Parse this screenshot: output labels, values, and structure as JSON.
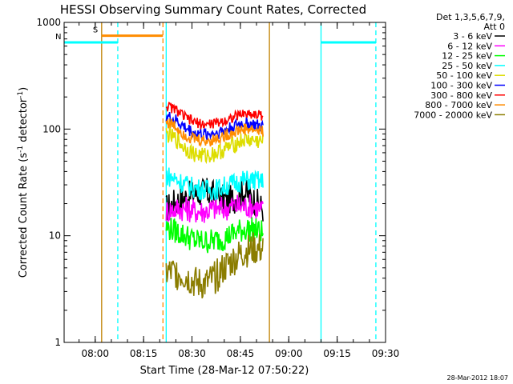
{
  "chart_data": {
    "type": "line",
    "title": "HESSI Observing Summary Count Rates, Corrected",
    "xlabel": "Start Time (28-Mar-12 07:50:22)",
    "ylabel": "Corrected Count Rate (s",
    "ylabel_sup1": "-1",
    "ylabel_mid": " detector",
    "ylabel_sup2": "-1",
    "ylabel_end": ")",
    "y_scale": "log",
    "ylim": [
      1,
      1000
    ],
    "xlim": [
      "07:50:22",
      "09:30:00"
    ],
    "x_ticks": [
      "08:00",
      "08:15",
      "08:30",
      "08:45",
      "09:00",
      "09:15",
      "09:30"
    ],
    "y_ticks": [
      "1",
      "10",
      "100",
      "1000"
    ],
    "grid": false,
    "legend_header": [
      "Det 1,3,5,6,7,9,",
      "Att 0"
    ],
    "legend_position": "top-right",
    "timestamp": "28-Mar-2012 18:07",
    "series": [
      {
        "name": "3 - 6 keV",
        "color": "#000000",
        "x": [
          "08:22",
          "08:25",
          "08:28",
          "08:31",
          "08:34",
          "08:37",
          "08:40",
          "08:43",
          "08:46",
          "08:49",
          "08:52"
        ],
        "values": [
          18,
          21,
          23,
          25,
          26,
          24,
          22,
          22,
          26,
          22,
          18
        ]
      },
      {
        "name": "6 - 12 keV",
        "color": "#ff00ff",
        "x": [
          "08:22",
          "08:25",
          "08:28",
          "08:31",
          "08:34",
          "08:37",
          "08:40",
          "08:43",
          "08:46",
          "08:49",
          "08:52"
        ],
        "values": [
          17,
          18,
          18,
          17,
          17,
          18,
          18,
          19,
          19,
          19,
          17
        ]
      },
      {
        "name": "12 - 25 keV",
        "color": "#00ff00",
        "x": [
          "08:22",
          "08:25",
          "08:28",
          "08:31",
          "08:34",
          "08:37",
          "08:40",
          "08:43",
          "08:46",
          "08:49",
          "08:52"
        ],
        "values": [
          12,
          11,
          10,
          9,
          8.8,
          9,
          9.5,
          10.5,
          11.5,
          11.5,
          10.5
        ]
      },
      {
        "name": "25 - 50 keV",
        "color": "#00ffff",
        "x": [
          "08:22",
          "08:25",
          "08:28",
          "08:31",
          "08:34",
          "08:37",
          "08:40",
          "08:43",
          "08:46",
          "08:49",
          "08:52"
        ],
        "values": [
          37,
          34,
          30,
          28,
          27,
          27,
          29,
          31,
          33,
          33,
          32
        ]
      },
      {
        "name": "50 - 100 keV",
        "color": "#dddd00",
        "x": [
          "08:22",
          "08:25",
          "08:28",
          "08:31",
          "08:34",
          "08:37",
          "08:40",
          "08:43",
          "08:46",
          "08:49",
          "08:52"
        ],
        "values": [
          90,
          80,
          66,
          58,
          56,
          59,
          64,
          72,
          79,
          78,
          76
        ]
      },
      {
        "name": "100 - 300 keV",
        "color": "#0000ff",
        "x": [
          "08:22",
          "08:25",
          "08:28",
          "08:31",
          "08:34",
          "08:37",
          "08:40",
          "08:43",
          "08:46",
          "08:49",
          "08:52"
        ],
        "values": [
          132,
          120,
          102,
          92,
          89,
          92,
          97,
          106,
          114,
          110,
          104
        ]
      },
      {
        "name": "300 - 800 keV",
        "color": "#ff0000",
        "x": [
          "08:22",
          "08:25",
          "08:28",
          "08:31",
          "08:34",
          "08:37",
          "08:40",
          "08:43",
          "08:46",
          "08:49",
          "08:52"
        ],
        "values": [
          165,
          152,
          128,
          115,
          110,
          113,
          120,
          130,
          140,
          138,
          134
        ]
      },
      {
        "name": "800 - 7000 keV",
        "color": "#ff8c00",
        "x": [
          "08:22",
          "08:25",
          "08:28",
          "08:31",
          "08:34",
          "08:37",
          "08:40",
          "08:43",
          "08:46",
          "08:49",
          "08:52"
        ],
        "values": [
          118,
          105,
          88,
          80,
          77,
          80,
          86,
          94,
          100,
          98,
          95
        ]
      },
      {
        "name": "7000 - 20000 keV",
        "color": "#8b7d00",
        "x": [
          "08:22",
          "08:25",
          "08:28",
          "08:31",
          "08:34",
          "08:37",
          "08:40",
          "08:43",
          "08:46",
          "08:49",
          "08:52"
        ],
        "values": [
          4.5,
          4.5,
          4.2,
          3.6,
          3.5,
          4.0,
          5.0,
          6.0,
          7.0,
          7.5,
          7.5
        ]
      }
    ],
    "flag_lines": [
      {
        "label": "S",
        "color": "#ff8c00",
        "label_color": "#ff8c00",
        "x_start": "08:02",
        "x_end": "08:21",
        "level": 750
      },
      {
        "label": "N",
        "color": "#00ffff",
        "label_color": "#00ffff",
        "x_start": "07:50:22",
        "x_end": "08:07",
        "level": 650
      },
      {
        "label": "",
        "color": "#00ffff",
        "label_color": "#00ffff",
        "x_start": "09:10",
        "x_end": "09:27",
        "level": 650
      }
    ],
    "markers": [
      {
        "time": "08:02",
        "color": "#c08000",
        "style": "solid"
      },
      {
        "time": "08:07",
        "color": "#00ffff",
        "style": "dashed"
      },
      {
        "time": "08:21",
        "color": "#ff8c00",
        "style": "dashed"
      },
      {
        "time": "08:22",
        "color": "#00ffff",
        "style": "solid"
      },
      {
        "time": "08:54",
        "color": "#c08000",
        "style": "solid"
      },
      {
        "time": "09:10",
        "color": "#00ffff",
        "style": "solid"
      },
      {
        "time": "09:27",
        "color": "#00ffff",
        "style": "dashed"
      }
    ],
    "data_window": [
      "08:22",
      "08:54"
    ]
  }
}
